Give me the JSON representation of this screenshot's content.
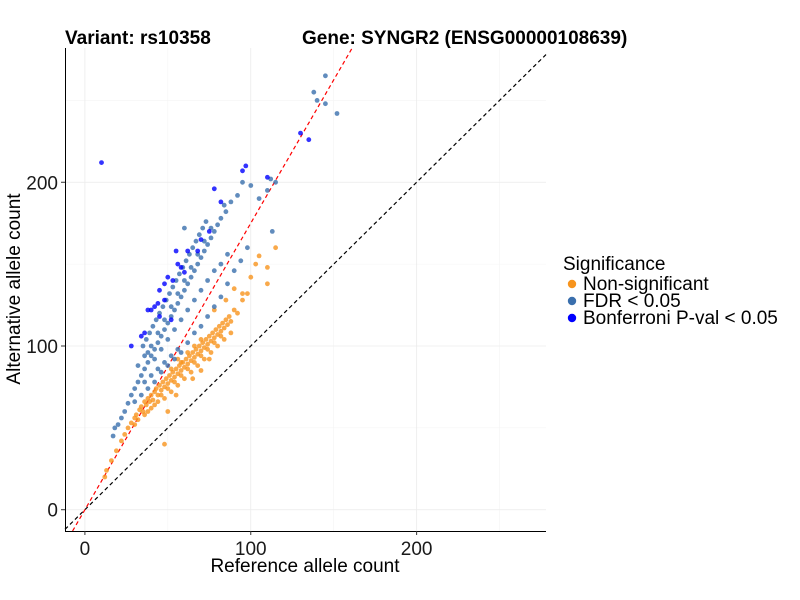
{
  "chart_data": {
    "type": "scatter",
    "title_left": "Variant: rs10358",
    "title_right": "Gene: SYNGR2 (ENSG00000108639)",
    "xlabel": "Reference allele count",
    "ylabel": "Alternative allele count",
    "xlim": [
      -12,
      278
    ],
    "ylim": [
      -13,
      282
    ],
    "x_ticks": [
      0,
      100,
      200
    ],
    "y_ticks": [
      0,
      100,
      200
    ],
    "grid": true,
    "legend_title": "Significance",
    "legend_position": "right",
    "reference_lines": [
      {
        "name": "identity-line",
        "slope": 1,
        "intercept": 0,
        "color": "#000000",
        "dash": true
      },
      {
        "name": "fitted-line",
        "slope": 1.75,
        "intercept": 0,
        "color": "#ff0000",
        "dash": true
      }
    ],
    "series": [
      {
        "name": "Non-significant",
        "color": "#f7941d",
        "points": [
          [
            12,
            20
          ],
          [
            13,
            24
          ],
          [
            16,
            30
          ],
          [
            19,
            36
          ],
          [
            22,
            42
          ],
          [
            24,
            46
          ],
          [
            26,
            50
          ],
          [
            28,
            53
          ],
          [
            30,
            56
          ],
          [
            31,
            58
          ],
          [
            33,
            61
          ],
          [
            34,
            63
          ],
          [
            35,
            60
          ],
          [
            36,
            66
          ],
          [
            37,
            64
          ],
          [
            38,
            68
          ],
          [
            39,
            66
          ],
          [
            40,
            70
          ],
          [
            41,
            67
          ],
          [
            42,
            72
          ],
          [
            43,
            74
          ],
          [
            44,
            70
          ],
          [
            45,
            76
          ],
          [
            46,
            73
          ],
          [
            47,
            78
          ],
          [
            48,
            75
          ],
          [
            49,
            80
          ],
          [
            50,
            77
          ],
          [
            51,
            82
          ],
          [
            52,
            79
          ],
          [
            53,
            84
          ],
          [
            54,
            81
          ],
          [
            55,
            86
          ],
          [
            56,
            83
          ],
          [
            57,
            88
          ],
          [
            58,
            85
          ],
          [
            59,
            90
          ],
          [
            60,
            87
          ],
          [
            61,
            92
          ],
          [
            62,
            89
          ],
          [
            63,
            94
          ],
          [
            64,
            91
          ],
          [
            65,
            96
          ],
          [
            66,
            93
          ],
          [
            67,
            98
          ],
          [
            68,
            95
          ],
          [
            69,
            100
          ],
          [
            70,
            97
          ],
          [
            71,
            102
          ],
          [
            72,
            99
          ],
          [
            73,
            104
          ],
          [
            74,
            101
          ],
          [
            75,
            106
          ],
          [
            76,
            103
          ],
          [
            77,
            108
          ],
          [
            78,
            105
          ],
          [
            79,
            110
          ],
          [
            80,
            107
          ],
          [
            81,
            112
          ],
          [
            82,
            109
          ],
          [
            83,
            114
          ],
          [
            84,
            111
          ],
          [
            85,
            116
          ],
          [
            86,
            113
          ],
          [
            87,
            118
          ],
          [
            88,
            115
          ],
          [
            90,
            122
          ],
          [
            92,
            120
          ],
          [
            95,
            128
          ],
          [
            98,
            132
          ],
          [
            100,
            142
          ],
          [
            103,
            150
          ],
          [
            105,
            155
          ],
          [
            110,
            148
          ],
          [
            115,
            160
          ],
          [
            110,
            138
          ],
          [
            95,
            132
          ],
          [
            85,
            128
          ],
          [
            90,
            135
          ],
          [
            78,
            122
          ],
          [
            30,
            52
          ],
          [
            32,
            55
          ],
          [
            36,
            58
          ],
          [
            40,
            62
          ],
          [
            44,
            66
          ],
          [
            48,
            68
          ],
          [
            52,
            72
          ],
          [
            56,
            76
          ],
          [
            60,
            80
          ],
          [
            64,
            84
          ],
          [
            68,
            88
          ],
          [
            72,
            92
          ],
          [
            76,
            96
          ],
          [
            80,
            100
          ],
          [
            84,
            104
          ],
          [
            88,
            108
          ],
          [
            46,
            70
          ],
          [
            50,
            74
          ],
          [
            54,
            78
          ],
          [
            58,
            82
          ],
          [
            62,
            86
          ],
          [
            66,
            90
          ],
          [
            70,
            94
          ],
          [
            74,
            98
          ],
          [
            78,
            102
          ],
          [
            82,
            106
          ],
          [
            38,
            60
          ],
          [
            42,
            64
          ],
          [
            48,
            40
          ],
          [
            50,
            60
          ],
          [
            55,
            70
          ],
          [
            65,
            80
          ],
          [
            70,
            85
          ],
          [
            75,
            92
          ],
          [
            58,
            90
          ],
          [
            62,
            96
          ],
          [
            66,
            100
          ],
          [
            70,
            104
          ],
          [
            52,
            86
          ],
          [
            56,
            92
          ]
        ]
      },
      {
        "name": "FDR < 0.05",
        "color": "#3a6fad",
        "points": [
          [
            17,
            45
          ],
          [
            18,
            50
          ],
          [
            20,
            52
          ],
          [
            22,
            56
          ],
          [
            24,
            60
          ],
          [
            26,
            65
          ],
          [
            28,
            70
          ],
          [
            30,
            74
          ],
          [
            32,
            78
          ],
          [
            34,
            82
          ],
          [
            36,
            86
          ],
          [
            38,
            90
          ],
          [
            40,
            94
          ],
          [
            42,
            98
          ],
          [
            44,
            102
          ],
          [
            46,
            106
          ],
          [
            48,
            110
          ],
          [
            50,
            114
          ],
          [
            52,
            118
          ],
          [
            54,
            122
          ],
          [
            56,
            126
          ],
          [
            58,
            130
          ],
          [
            60,
            134
          ],
          [
            62,
            138
          ],
          [
            64,
            142
          ],
          [
            66,
            146
          ],
          [
            68,
            150
          ],
          [
            70,
            154
          ],
          [
            72,
            158
          ],
          [
            74,
            162
          ],
          [
            76,
            166
          ],
          [
            78,
            170
          ],
          [
            80,
            174
          ],
          [
            82,
            178
          ],
          [
            85,
            182
          ],
          [
            88,
            188
          ],
          [
            92,
            192
          ],
          [
            95,
            200
          ],
          [
            100,
            198
          ],
          [
            105,
            190
          ],
          [
            110,
            195
          ],
          [
            112,
            202
          ],
          [
            115,
            200
          ],
          [
            113,
            170
          ],
          [
            140,
            250
          ],
          [
            145,
            248
          ],
          [
            152,
            242
          ],
          [
            138,
            255
          ],
          [
            145,
            265
          ],
          [
            60,
            172
          ],
          [
            35,
            100
          ],
          [
            37,
            104
          ],
          [
            39,
            108
          ],
          [
            41,
            112
          ],
          [
            43,
            116
          ],
          [
            45,
            120
          ],
          [
            47,
            124
          ],
          [
            49,
            128
          ],
          [
            51,
            132
          ],
          [
            53,
            136
          ],
          [
            55,
            140
          ],
          [
            57,
            144
          ],
          [
            59,
            148
          ],
          [
            61,
            152
          ],
          [
            63,
            156
          ],
          [
            65,
            160
          ],
          [
            67,
            164
          ],
          [
            69,
            168
          ],
          [
            71,
            172
          ],
          [
            73,
            176
          ],
          [
            38,
            96
          ],
          [
            42,
            92
          ],
          [
            46,
            98
          ],
          [
            50,
            104
          ],
          [
            54,
            110
          ],
          [
            58,
            116
          ],
          [
            62,
            122
          ],
          [
            66,
            128
          ],
          [
            70,
            134
          ],
          [
            74,
            140
          ],
          [
            78,
            146
          ],
          [
            82,
            150
          ],
          [
            86,
            156
          ],
          [
            36,
            78
          ],
          [
            40,
            82
          ],
          [
            44,
            86
          ],
          [
            48,
            90
          ],
          [
            52,
            94
          ],
          [
            56,
            98
          ],
          [
            30,
            66
          ],
          [
            34,
            70
          ],
          [
            38,
            74
          ],
          [
            42,
            78
          ],
          [
            46,
            84
          ],
          [
            50,
            88
          ],
          [
            54,
            92
          ],
          [
            58,
            96
          ],
          [
            62,
            102
          ],
          [
            66,
            108
          ],
          [
            70,
            112
          ],
          [
            74,
            118
          ],
          [
            78,
            124
          ],
          [
            82,
            130
          ],
          [
            86,
            138
          ],
          [
            90,
            146
          ],
          [
            94,
            152
          ],
          [
            98,
            160
          ],
          [
            32,
            88
          ],
          [
            36,
            94
          ],
          [
            40,
            100
          ],
          [
            44,
            108
          ],
          [
            48,
            116
          ],
          [
            52,
            124
          ],
          [
            56,
            132
          ],
          [
            60,
            140
          ],
          [
            64,
            148
          ],
          [
            68,
            156
          ],
          [
            72,
            164
          ],
          [
            76,
            172
          ],
          [
            84,
            186
          ]
        ]
      },
      {
        "name": "Bonferroni P-val < 0.05",
        "color": "#0000ff",
        "points": [
          [
            10,
            212
          ],
          [
            130,
            230
          ],
          [
            135,
            226
          ],
          [
            110,
            203
          ],
          [
            97,
            210
          ],
          [
            95,
            207
          ],
          [
            78,
            196
          ],
          [
            82,
            188
          ],
          [
            70,
            165
          ],
          [
            75,
            170
          ],
          [
            68,
            158
          ],
          [
            62,
            158
          ],
          [
            55,
            158
          ],
          [
            58,
            148
          ],
          [
            60,
            145
          ],
          [
            50,
            142
          ],
          [
            53,
            140
          ],
          [
            48,
            138
          ],
          [
            45,
            134
          ],
          [
            44,
            126
          ],
          [
            42,
            124
          ],
          [
            40,
            122
          ],
          [
            38,
            122
          ],
          [
            45,
            118
          ],
          [
            52,
            116
          ],
          [
            28,
            100
          ],
          [
            34,
            106
          ],
          [
            36,
            108
          ],
          [
            48,
            128
          ],
          [
            56,
            150
          ]
        ]
      }
    ]
  }
}
